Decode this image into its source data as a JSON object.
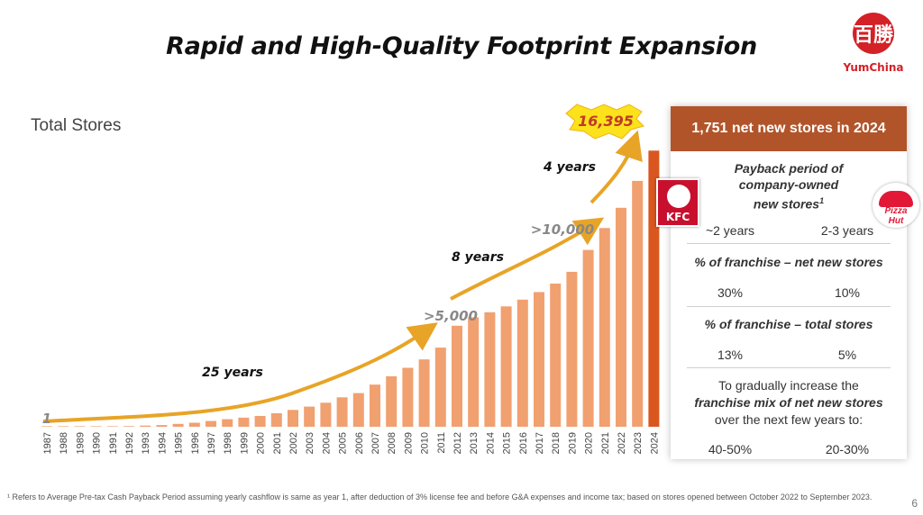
{
  "title": "Rapid and High-Quality Footprint Expansion",
  "logo": {
    "mark": "百勝",
    "text": "YumChina"
  },
  "chart_data": {
    "type": "bar",
    "title": "Total Stores",
    "categories": [
      "1987",
      "1988",
      "1989",
      "1990",
      "1991",
      "1992",
      "1993",
      "1994",
      "1995",
      "1996",
      "1997",
      "1998",
      "1999",
      "2000",
      "2001",
      "2002",
      "2003",
      "2004",
      "2005",
      "2006",
      "2007",
      "2008",
      "2009",
      "2010",
      "2011",
      "2012",
      "2013",
      "2014",
      "2015",
      "2016",
      "2017",
      "2018",
      "2019",
      "2020",
      "2021",
      "2022",
      "2023",
      "2024"
    ],
    "values": [
      1,
      5,
      10,
      15,
      25,
      40,
      70,
      100,
      170,
      240,
      340,
      450,
      540,
      640,
      800,
      1000,
      1200,
      1430,
      1750,
      2000,
      2500,
      3000,
      3500,
      4000,
      4700,
      6000,
      6500,
      6800,
      7150,
      7550,
      8000,
      8500,
      9200,
      10500,
      11800,
      13000,
      14600,
      16395
    ],
    "ylim": [
      0,
      17000
    ],
    "highlight_color": "#d9571f",
    "bar_color": "#f1a070",
    "arrow_color": "#e8a427",
    "annotations": {
      "start_value": "1",
      "milestone_5000": ">5,000",
      "milestone_10000": ">10,000",
      "final_value": "16,395",
      "period_1": "25 years",
      "period_2": "8 years",
      "period_3": "4 years"
    }
  },
  "panel": {
    "header": "1,751 net new stores in 2024",
    "payback_title_1": "Payback period of",
    "payback_title_2": "company-owned",
    "payback_title_3": "new stores",
    "payback_footnote_mark": "1",
    "payback_kfc": "~2 years",
    "payback_ph": "2-3 years",
    "fr_new_title": "% of franchise – net new stores",
    "fr_new_kfc": "30%",
    "fr_new_ph": "10%",
    "fr_total_title": "% of franchise – total stores",
    "fr_total_kfc": "13%",
    "fr_total_ph": "5%",
    "goal_line_1": "To gradually increase the",
    "goal_line_2": "franchise mix of net new stores",
    "goal_line_3": "over the next few years to:",
    "goal_kfc": "40-50%",
    "goal_ph": "20-30%"
  },
  "brands": {
    "kfc": "KFC",
    "pizza_hut": "Pizza Hut"
  },
  "footnote": "¹ Refers to Average Pre-tax Cash Payback Period assuming yearly cashflow is same as year 1, after deduction of 3% license fee and before G&A expenses and income tax; based on stores opened between October 2022 to September 2023.",
  "page_number": "6"
}
